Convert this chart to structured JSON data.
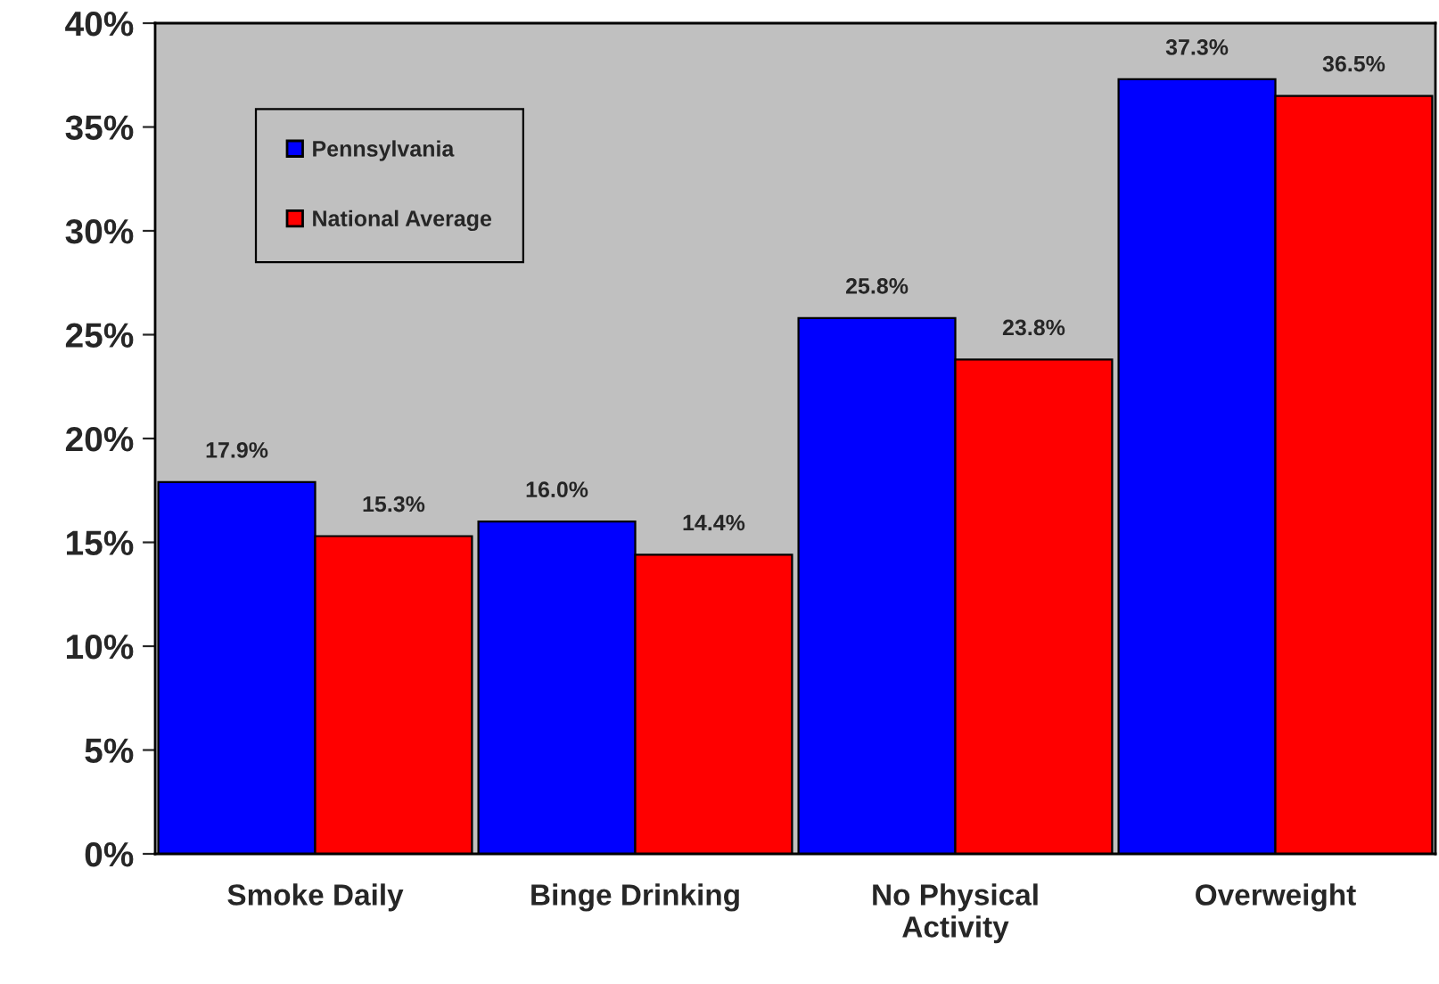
{
  "chart_data": {
    "type": "bar",
    "categories": [
      "Smoke Daily",
      "Binge Drinking",
      "No Physical\nActivity",
      "Overweight"
    ],
    "series": [
      {
        "name": "Pennsylvania",
        "color": "#0000ff",
        "values": [
          17.9,
          16.0,
          25.8,
          37.3
        ],
        "value_labels": [
          "17.9%",
          "16.0%",
          "25.8%",
          "37.3%"
        ]
      },
      {
        "name": "National Average",
        "color": "#ff0000",
        "values": [
          15.3,
          14.4,
          23.8,
          36.5
        ],
        "value_labels": [
          "15.3%",
          "14.4%",
          "23.8%",
          "36.5%"
        ]
      }
    ],
    "ylim": [
      0,
      40
    ],
    "yticks": [
      {
        "value": 0,
        "label": "0%"
      },
      {
        "value": 5,
        "label": "5%"
      },
      {
        "value": 10,
        "label": "10%"
      },
      {
        "value": 15,
        "label": "15%"
      },
      {
        "value": 20,
        "label": "20%"
      },
      {
        "value": 25,
        "label": "25%"
      },
      {
        "value": 30,
        "label": "30%"
      },
      {
        "value": 35,
        "label": "35%"
      },
      {
        "value": 40,
        "label": "40%"
      }
    ],
    "grid": false,
    "legend": "top left"
  }
}
